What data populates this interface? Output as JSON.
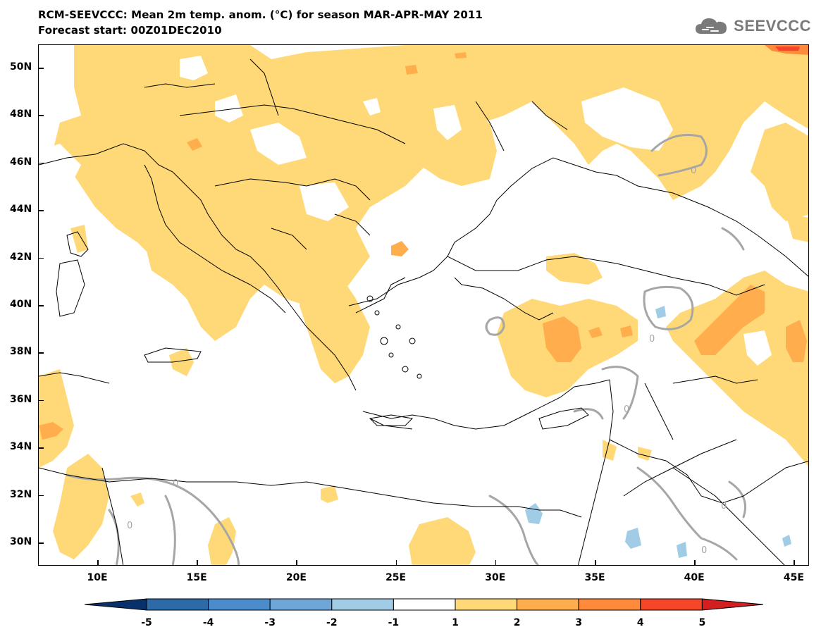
{
  "title": {
    "line1": "RCM-SEEVCCC: Mean 2m temp. anom. (°C) for season MAR-APR-MAY 2011",
    "line2": "Forecast start: 00Z01DEC2010"
  },
  "logo": {
    "text": "SEEVCCC",
    "icon": "cloud-icon"
  },
  "axes": {
    "lat_labels": [
      "50N",
      "48N",
      "46N",
      "44N",
      "42N",
      "40N",
      "38N",
      "36N",
      "34N",
      "32N",
      "30N"
    ],
    "lon_labels": [
      "10E",
      "15E",
      "20E",
      "25E",
      "30E",
      "35E",
      "40E",
      "45E"
    ]
  },
  "contour_label": "0",
  "colorbar": {
    "labels": [
      "-5",
      "-4",
      "-3",
      "-2",
      "-1",
      "1",
      "2",
      "3",
      "4",
      "5"
    ],
    "colors": [
      "#08306b",
      "#2c6aa8",
      "#4a8ccc",
      "#6fa6d8",
      "#a0cce6",
      "#ffffff",
      "#ffd977",
      "#ffad4d",
      "#ff8a3c",
      "#f5462a",
      "#d41f1f"
    ]
  },
  "colors": {
    "anom_1_2": "#ffd977",
    "anom_2_3": "#ffad4d",
    "anom_3_4": "#ff8a3c",
    "anom_4_5": "#f5462a",
    "anom_neg_1_2": "#a0cce6",
    "zero_contour": "#a6a6a6",
    "coast": "#000000"
  }
}
